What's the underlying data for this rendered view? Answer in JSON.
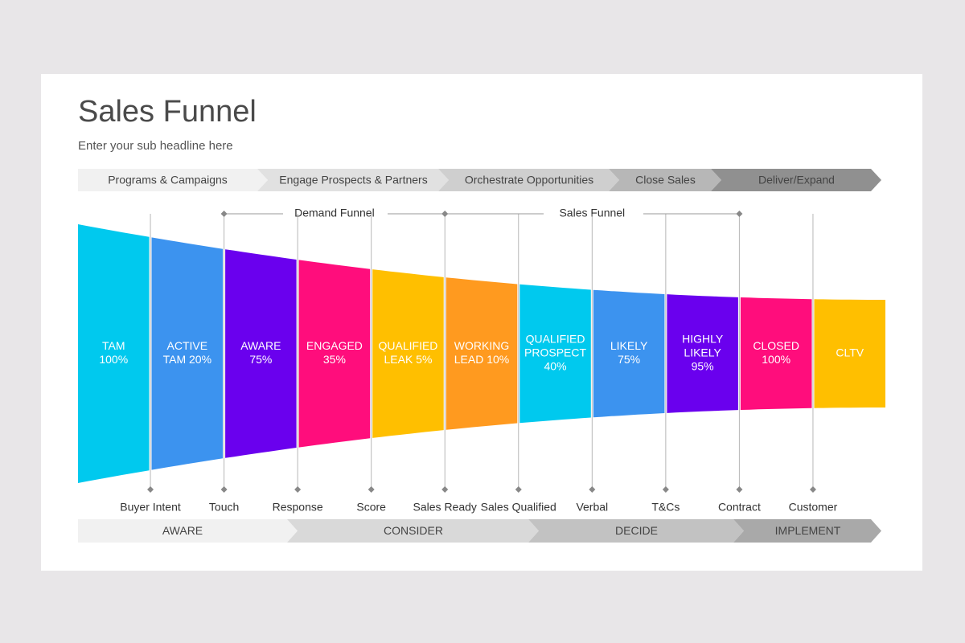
{
  "header": {
    "title": "Sales Funnel",
    "subtitle": "Enter your sub headline here"
  },
  "stages": [
    {
      "label": "Programs & Campaigns",
      "color": "#f1f1f1"
    },
    {
      "label": "Engage Prospects & Partners",
      "color": "#e1e1e1"
    },
    {
      "label": "Orchestrate Opportunities",
      "color": "#cfcfcf"
    },
    {
      "label": "Close Sales",
      "color": "#b7b7b7"
    },
    {
      "label": "Deliver/Expand",
      "color": "#909090"
    }
  ],
  "brackets": [
    "Demand Funnel",
    "Sales Funnel"
  ],
  "segments": [
    {
      "lines": [
        "TAM",
        "100%"
      ],
      "color": "#00c9ee"
    },
    {
      "lines": [
        "ACTIVE",
        "TAM 20%"
      ],
      "color": "#3c93ef"
    },
    {
      "lines": [
        "AWARE",
        "75%"
      ],
      "color": "#6a00ee"
    },
    {
      "lines": [
        "ENGAGED",
        "35%"
      ],
      "color": "#ff0d7c"
    },
    {
      "lines": [
        "QUALIFIED",
        "LEAK 5%"
      ],
      "color": "#ffbf00"
    },
    {
      "lines": [
        "WORKING",
        "LEAD 10%"
      ],
      "color": "#ff9a1f"
    },
    {
      "lines": [
        "QUALIFIED",
        "PROSPECT",
        "40%"
      ],
      "color": "#00c9ee"
    },
    {
      "lines": [
        "LIKELY",
        "75%"
      ],
      "color": "#3c93ef"
    },
    {
      "lines": [
        "HIGHLY",
        "LIKELY",
        "95%"
      ],
      "color": "#6a00ee"
    },
    {
      "lines": [
        "CLOSED",
        "100%"
      ],
      "color": "#ff0d7c"
    },
    {
      "lines": [
        "CLTV"
      ],
      "color": "#ffbf00"
    }
  ],
  "milestones": [
    "Buyer Intent",
    "Touch",
    "Response",
    "Score",
    "Sales Ready",
    "Sales Qualified",
    "Verbal",
    "T&Cs",
    "Contract",
    "Customer"
  ],
  "phases": [
    {
      "label": "AWARE",
      "color": "#f1f1f1"
    },
    {
      "label": "CONSIDER",
      "color": "#d9d9d9"
    },
    {
      "label": "DECIDE",
      "color": "#c2c2c2"
    },
    {
      "label": "IMPLEMENT",
      "color": "#a9a9a9"
    }
  ]
}
